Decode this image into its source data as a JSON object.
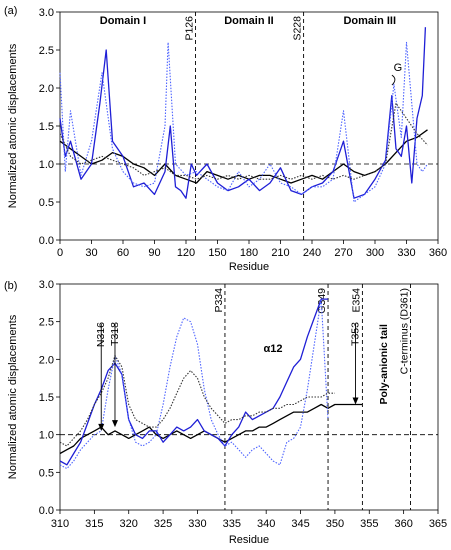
{
  "chart_data": [
    {
      "panel": "(a)",
      "type": "line",
      "xlabel": "Residue",
      "ylabel": "Normalized atomic displacements",
      "xlim": [
        0,
        360
      ],
      "ylim": [
        0,
        3
      ],
      "xticks": [
        0,
        30,
        60,
        90,
        120,
        150,
        180,
        210,
        240,
        270,
        300,
        330,
        360
      ],
      "yticks": [
        0.0,
        0.5,
        1.0,
        1.5,
        2.0,
        2.5,
        3.0
      ],
      "grid": false,
      "reference_line_y": 1.0,
      "domains": [
        {
          "label": "Domain I",
          "x": 60
        },
        {
          "label": "Domain II",
          "x": 180
        },
        {
          "label": "Domain III",
          "x": 295
        }
      ],
      "boundaries": [
        {
          "label": "P126",
          "x": 129
        },
        {
          "label": "S228",
          "x": 232
        }
      ],
      "annotations": [
        {
          "label": "G",
          "x": 318
        }
      ],
      "series": [
        {
          "color": "#000000",
          "style": "solid",
          "x": [
            0,
            10,
            20,
            30,
            40,
            50,
            60,
            70,
            80,
            90,
            100,
            110,
            120,
            130,
            140,
            150,
            160,
            170,
            180,
            190,
            200,
            210,
            220,
            230,
            240,
            250,
            260,
            270,
            280,
            290,
            300,
            310,
            320,
            330,
            340,
            350
          ],
          "y": [
            1.3,
            1.2,
            1.1,
            1.0,
            1.05,
            1.15,
            1.1,
            1.0,
            0.95,
            0.85,
            1.0,
            0.85,
            0.8,
            0.75,
            0.9,
            0.85,
            0.8,
            0.85,
            0.8,
            0.85,
            0.85,
            0.8,
            0.75,
            0.8,
            0.85,
            0.8,
            0.9,
            1.0,
            0.9,
            0.85,
            0.9,
            1.0,
            1.15,
            1.3,
            1.35,
            1.45
          ]
        },
        {
          "color": "#1f1fd6",
          "style": "solid",
          "x": [
            0,
            5,
            10,
            20,
            30,
            38,
            44,
            50,
            60,
            70,
            80,
            90,
            100,
            105,
            110,
            115,
            120,
            125,
            130,
            140,
            150,
            160,
            170,
            180,
            190,
            200,
            210,
            220,
            230,
            240,
            250,
            260,
            270,
            280,
            290,
            300,
            310,
            316,
            320,
            325,
            330,
            335,
            340,
            345,
            348
          ],
          "y": [
            1.6,
            1.1,
            1.3,
            0.8,
            1.0,
            1.8,
            2.5,
            1.3,
            1.1,
            0.7,
            0.75,
            0.6,
            0.9,
            1.5,
            0.7,
            0.65,
            0.55,
            1.0,
            0.85,
            1.0,
            0.75,
            0.65,
            0.7,
            0.8,
            0.65,
            0.75,
            0.95,
            0.65,
            0.6,
            0.7,
            0.75,
            0.9,
            1.3,
            0.55,
            0.6,
            0.8,
            1.05,
            1.9,
            1.2,
            1.1,
            1.5,
            0.75,
            1.6,
            1.9,
            2.8
          ]
        },
        {
          "color": "#4d63ff",
          "style": "dotted",
          "x": [
            0,
            5,
            10,
            20,
            30,
            40,
            50,
            60,
            70,
            80,
            90,
            100,
            103,
            110,
            120,
            130,
            140,
            150,
            160,
            170,
            180,
            190,
            200,
            210,
            220,
            230,
            240,
            250,
            260,
            270,
            280,
            290,
            300,
            310,
            318,
            325,
            330,
            340,
            345,
            350
          ],
          "y": [
            2.2,
            0.9,
            1.7,
            0.85,
            1.3,
            2.2,
            1.2,
            0.9,
            0.75,
            0.7,
            0.75,
            1.5,
            2.6,
            1.0,
            0.85,
            0.9,
            0.8,
            0.7,
            0.65,
            0.9,
            0.7,
            0.8,
            1.0,
            0.75,
            0.7,
            0.6,
            0.7,
            0.7,
            0.8,
            1.7,
            0.5,
            0.6,
            0.7,
            1.0,
            2.05,
            1.35,
            2.6,
            1.0,
            0.9,
            1.0
          ]
        },
        {
          "color": "#333333",
          "style": "dotted",
          "x": [
            0,
            10,
            20,
            30,
            40,
            50,
            60,
            70,
            80,
            90,
            100,
            110,
            120,
            130,
            140,
            150,
            160,
            170,
            180,
            190,
            200,
            210,
            220,
            230,
            240,
            250,
            260,
            270,
            280,
            290,
            300,
            310,
            320,
            330,
            340,
            350
          ],
          "y": [
            1.4,
            1.1,
            1.0,
            1.05,
            1.1,
            1.05,
            1.0,
            0.95,
            0.85,
            0.9,
            0.95,
            0.85,
            0.85,
            0.8,
            0.85,
            0.8,
            0.85,
            0.8,
            0.85,
            0.8,
            0.8,
            0.85,
            0.8,
            0.85,
            0.8,
            0.85,
            0.8,
            0.85,
            0.8,
            0.85,
            0.9,
            1.0,
            1.8,
            1.6,
            1.4,
            1.25
          ]
        }
      ]
    },
    {
      "panel": "(b)",
      "type": "line",
      "xlabel": "Residue",
      "ylabel": "Normalized atomic displacements",
      "xlim": [
        310,
        365
      ],
      "ylim": [
        0,
        3
      ],
      "xticks": [
        310,
        315,
        320,
        325,
        330,
        335,
        340,
        345,
        350,
        355,
        360,
        365
      ],
      "yticks": [
        0.0,
        0.5,
        1.0,
        1.5,
        2.0,
        2.5,
        3.0
      ],
      "grid": false,
      "reference_line_y": 1.0,
      "boundaries": [
        {
          "label": "P334",
          "x": 334
        },
        {
          "label": "G349",
          "x": 349
        },
        {
          "label": "E354",
          "x": 354
        },
        {
          "label": "C-terminus (D361)",
          "x": 361
        }
      ],
      "annotations": [
        {
          "label": "N316",
          "x": 316,
          "y": 1.05,
          "arrow": true
        },
        {
          "label": "T318",
          "x": 318,
          "y": 1.1,
          "arrow": true
        },
        {
          "label": "T353",
          "x": 353,
          "y": 1.4,
          "arrow": true
        },
        {
          "label": "α12",
          "x": 341,
          "y": 2.1,
          "bold": true
        },
        {
          "label": "Poly-anionic tail",
          "x": 357,
          "y": 1.4,
          "bold": true
        }
      ],
      "series": [
        {
          "color": "#000000",
          "style": "solid",
          "x": [
            310,
            311,
            312,
            313,
            314,
            315,
            316,
            317,
            318,
            319,
            320,
            321,
            322,
            323,
            324,
            325,
            326,
            327,
            328,
            329,
            330,
            331,
            332,
            333,
            334,
            335,
            336,
            337,
            338,
            339,
            340,
            341,
            342,
            343,
            344,
            345,
            346,
            347,
            348,
            349,
            350,
            351,
            352,
            353,
            354
          ],
          "y": [
            0.75,
            0.8,
            0.85,
            0.95,
            1.0,
            1.05,
            1.1,
            1.0,
            1.05,
            1.0,
            0.95,
            1.0,
            1.05,
            1.1,
            1.0,
            0.95,
            1.0,
            1.05,
            1.0,
            0.95,
            1.0,
            1.05,
            1.0,
            0.95,
            0.9,
            0.95,
            1.0,
            1.05,
            1.05,
            1.1,
            1.1,
            1.15,
            1.2,
            1.25,
            1.3,
            1.3,
            1.3,
            1.35,
            1.4,
            1.35,
            1.4,
            1.4,
            1.4,
            1.4,
            1.4
          ]
        },
        {
          "color": "#1f1fd6",
          "style": "solid",
          "x": [
            310,
            311,
            312,
            313,
            314,
            315,
            316,
            317,
            318,
            319,
            320,
            321,
            322,
            323,
            324,
            325,
            326,
            327,
            328,
            329,
            330,
            331,
            332,
            333,
            334,
            335,
            336,
            337,
            338,
            339,
            340,
            341,
            342,
            343,
            344,
            345,
            346,
            347,
            348,
            349
          ],
          "y": [
            0.65,
            0.6,
            0.75,
            0.9,
            1.15,
            1.4,
            1.6,
            1.85,
            1.95,
            1.8,
            1.2,
            1.0,
            0.95,
            1.05,
            1.05,
            0.9,
            1.0,
            1.1,
            1.05,
            1.1,
            1.2,
            1.05,
            1.0,
            0.95,
            0.85,
            1.0,
            1.1,
            1.3,
            1.2,
            1.25,
            1.3,
            1.35,
            1.5,
            1.7,
            1.9,
            2.0,
            2.3,
            2.55,
            2.8,
            2.8
          ]
        },
        {
          "color": "#4d63ff",
          "style": "dotted",
          "x": [
            310,
            311,
            312,
            313,
            314,
            315,
            316,
            317,
            318,
            319,
            320,
            321,
            322,
            323,
            324,
            325,
            326,
            327,
            328,
            329,
            330,
            331,
            332,
            333,
            334,
            335,
            336,
            337,
            338,
            339,
            340,
            341,
            342,
            343,
            344,
            345,
            346,
            347,
            348,
            349
          ],
          "y": [
            0.6,
            0.55,
            0.65,
            0.8,
            0.9,
            1.0,
            1.05,
            1.6,
            2.05,
            1.8,
            1.2,
            0.9,
            0.85,
            0.9,
            1.0,
            1.4,
            1.9,
            2.3,
            2.55,
            2.5,
            2.2,
            1.6,
            1.2,
            1.0,
            0.85,
            0.9,
            0.8,
            0.7,
            0.8,
            0.85,
            0.75,
            0.65,
            0.6,
            0.9,
            0.95,
            1.1,
            1.6,
            2.2,
            2.8,
            1.2
          ]
        },
        {
          "color": "#333333",
          "style": "dotted",
          "x": [
            310,
            311,
            312,
            313,
            314,
            315,
            316,
            317,
            318,
            319,
            320,
            321,
            322,
            323,
            324,
            325,
            326,
            327,
            328,
            329,
            330,
            331,
            332,
            333,
            334,
            335,
            336,
            337,
            338,
            339,
            340,
            341,
            342,
            343,
            344,
            345,
            346,
            347,
            348,
            349,
            350
          ],
          "y": [
            0.9,
            0.85,
            0.95,
            1.05,
            1.2,
            1.4,
            1.55,
            1.75,
            2.05,
            1.9,
            1.4,
            1.2,
            1.15,
            1.1,
            1.1,
            1.2,
            1.35,
            1.55,
            1.75,
            1.85,
            1.75,
            1.5,
            1.35,
            1.25,
            1.15,
            1.2,
            1.2,
            1.25,
            1.25,
            1.3,
            1.3,
            1.35,
            1.35,
            1.4,
            1.4,
            1.45,
            1.5,
            1.5,
            1.5,
            1.55,
            1.55
          ]
        }
      ]
    }
  ]
}
